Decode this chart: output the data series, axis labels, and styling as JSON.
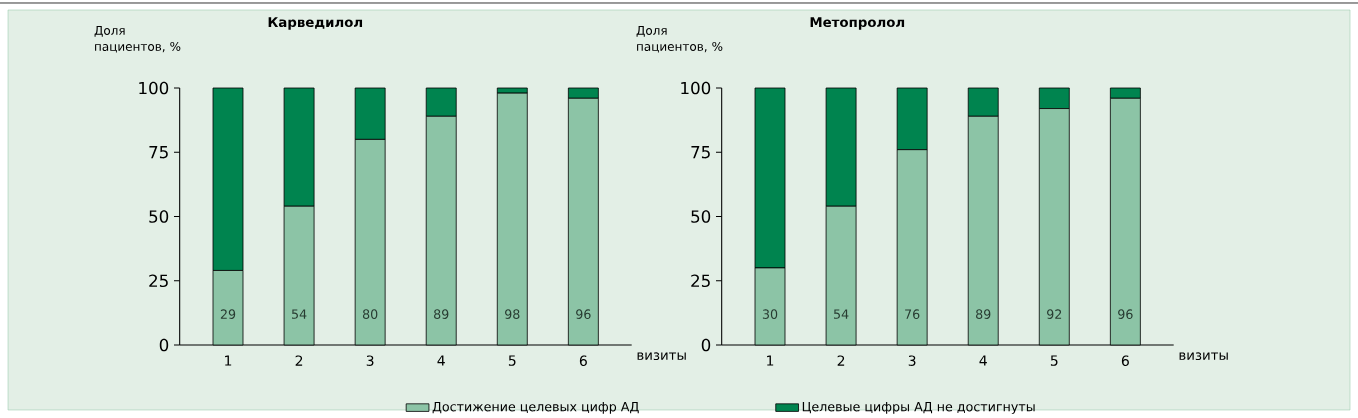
{
  "chart_data": [
    {
      "type": "bar",
      "title": "Карведилол",
      "ylabel": "Доля пациентов, %",
      "xlabel": "визиты",
      "categories": [
        "1",
        "2",
        "3",
        "4",
        "5",
        "6"
      ],
      "stacked": true,
      "ylim": [
        0,
        100
      ],
      "yticks": [
        0,
        25,
        50,
        75,
        100
      ],
      "legend": "bottom",
      "series": [
        {
          "name": "Достижение целевых цифр АД",
          "color": "#8cc4a6",
          "values": [
            29,
            54,
            80,
            89,
            98,
            96
          ],
          "value_labels": [
            "29",
            "54",
            "80",
            "89",
            "98",
            "96"
          ]
        },
        {
          "name": "Целевые цифры АД не достигнуты",
          "color": "#00844f",
          "values": [
            71,
            46,
            20,
            11,
            2,
            4
          ]
        }
      ]
    },
    {
      "type": "bar",
      "title": "Метопролол",
      "ylabel": "Доля пациентов, %",
      "xlabel": "визиты",
      "categories": [
        "1",
        "2",
        "3",
        "4",
        "5",
        "6"
      ],
      "stacked": true,
      "ylim": [
        0,
        100
      ],
      "yticks": [
        0,
        25,
        50,
        75,
        100
      ],
      "series": [
        {
          "color": "#8cc4a6",
          "values": [
            30,
            54,
            76,
            89,
            92,
            96
          ],
          "value_labels": [
            "30",
            "54",
            "76",
            "89",
            "92",
            "96"
          ]
        },
        {
          "color": "#00844f",
          "values": [
            70,
            46,
            24,
            11,
            8,
            4
          ]
        }
      ]
    }
  ]
}
